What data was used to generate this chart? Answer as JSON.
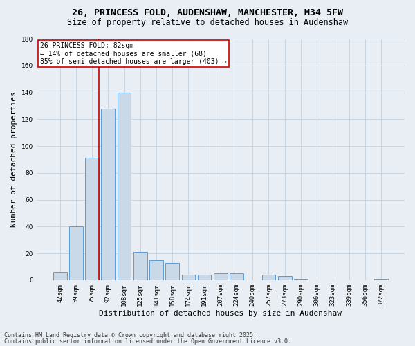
{
  "title_line1": "26, PRINCESS FOLD, AUDENSHAW, MANCHESTER, M34 5FW",
  "title_line2": "Size of property relative to detached houses in Audenshaw",
  "xlabel": "Distribution of detached houses by size in Audenshaw",
  "ylabel": "Number of detached properties",
  "categories": [
    "42sqm",
    "59sqm",
    "75sqm",
    "92sqm",
    "108sqm",
    "125sqm",
    "141sqm",
    "158sqm",
    "174sqm",
    "191sqm",
    "207sqm",
    "224sqm",
    "240sqm",
    "257sqm",
    "273sqm",
    "290sqm",
    "306sqm",
    "323sqm",
    "339sqm",
    "356sqm",
    "372sqm"
  ],
  "values": [
    6,
    40,
    91,
    128,
    140,
    21,
    15,
    13,
    4,
    4,
    5,
    5,
    0,
    4,
    3,
    1,
    0,
    0,
    0,
    0,
    1
  ],
  "bar_color": "#c9d9e8",
  "bar_edge_color": "#5b9bd5",
  "grid_color": "#c8d4e0",
  "background_color": "#e8eef4",
  "vline_color": "#cc0000",
  "vline_x": 2.425,
  "annotation_line1": "26 PRINCESS FOLD: 82sqm",
  "annotation_line2": "← 14% of detached houses are smaller (68)",
  "annotation_line3": "85% of semi-detached houses are larger (403) →",
  "annotation_box_color": "#ffffff",
  "annotation_box_edge": "#cc0000",
  "ylim": [
    0,
    180
  ],
  "yticks": [
    0,
    20,
    40,
    60,
    80,
    100,
    120,
    140,
    160,
    180
  ],
  "footer_line1": "Contains HM Land Registry data © Crown copyright and database right 2025.",
  "footer_line2": "Contains public sector information licensed under the Open Government Licence v3.0.",
  "title_fontsize": 9.5,
  "subtitle_fontsize": 8.5,
  "axis_label_fontsize": 8,
  "tick_fontsize": 6.5,
  "annotation_fontsize": 7,
  "footer_fontsize": 6
}
